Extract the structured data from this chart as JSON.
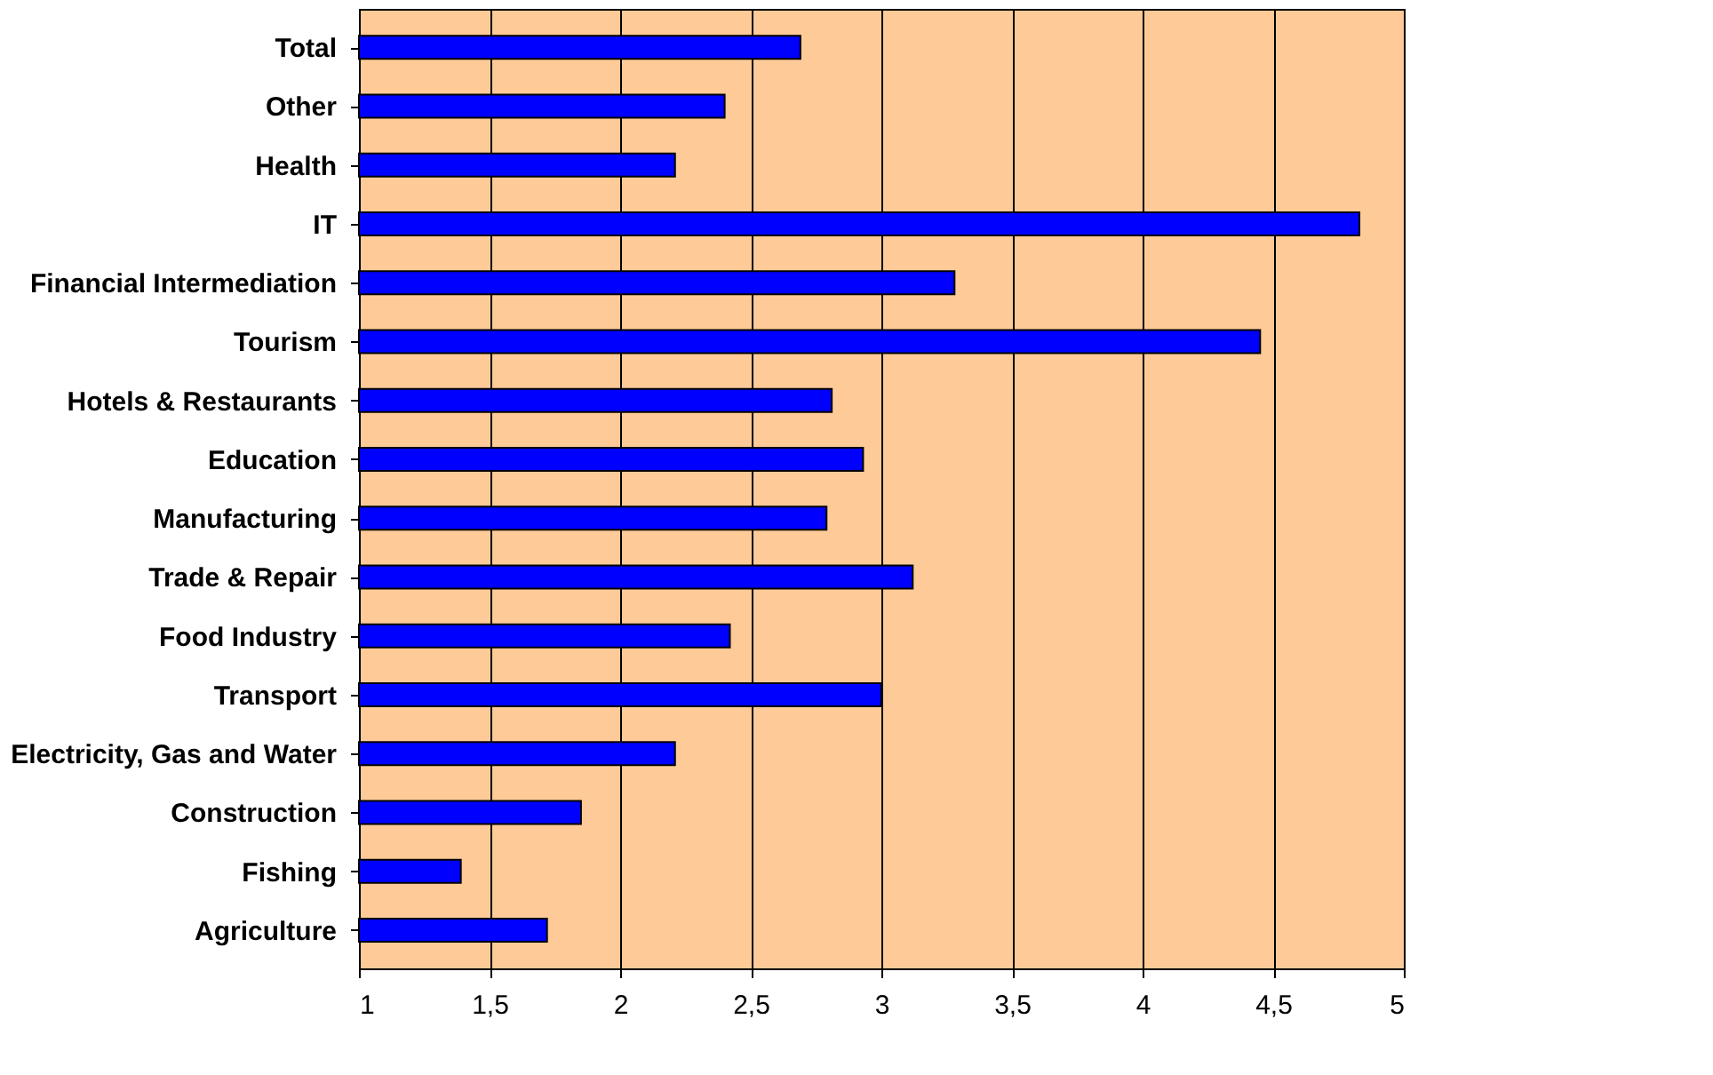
{
  "chart_data": {
    "type": "bar",
    "orientation": "horizontal",
    "categories": [
      "Total",
      "Other",
      "Health",
      "IT",
      "Financial Intermediation",
      "Tourism",
      "Hotels & Restaurants",
      "Education",
      "Manufacturing",
      "Trade & Repair",
      "Food Industry",
      "Transport",
      "Electricity, Gas and Water ",
      "Construction",
      "Fishing",
      "Agriculture"
    ],
    "values": [
      2.69,
      2.4,
      2.21,
      4.83,
      3.28,
      4.45,
      2.81,
      2.93,
      2.79,
      3.12,
      2.42,
      3.0,
      2.21,
      1.85,
      1.39,
      1.72
    ],
    "color": "#0000ff",
    "xlim": [
      1,
      5
    ],
    "xticks": [
      1,
      {
        "value": 1.5,
        "label": "1,5"
      },
      2,
      {
        "value": 2.5,
        "label": "2,5"
      },
      3,
      {
        "value": 3.5,
        "label": "3,5"
      },
      4,
      {
        "value": 4.5,
        "label": "4,5"
      },
      5
    ],
    "grid": "x"
  }
}
